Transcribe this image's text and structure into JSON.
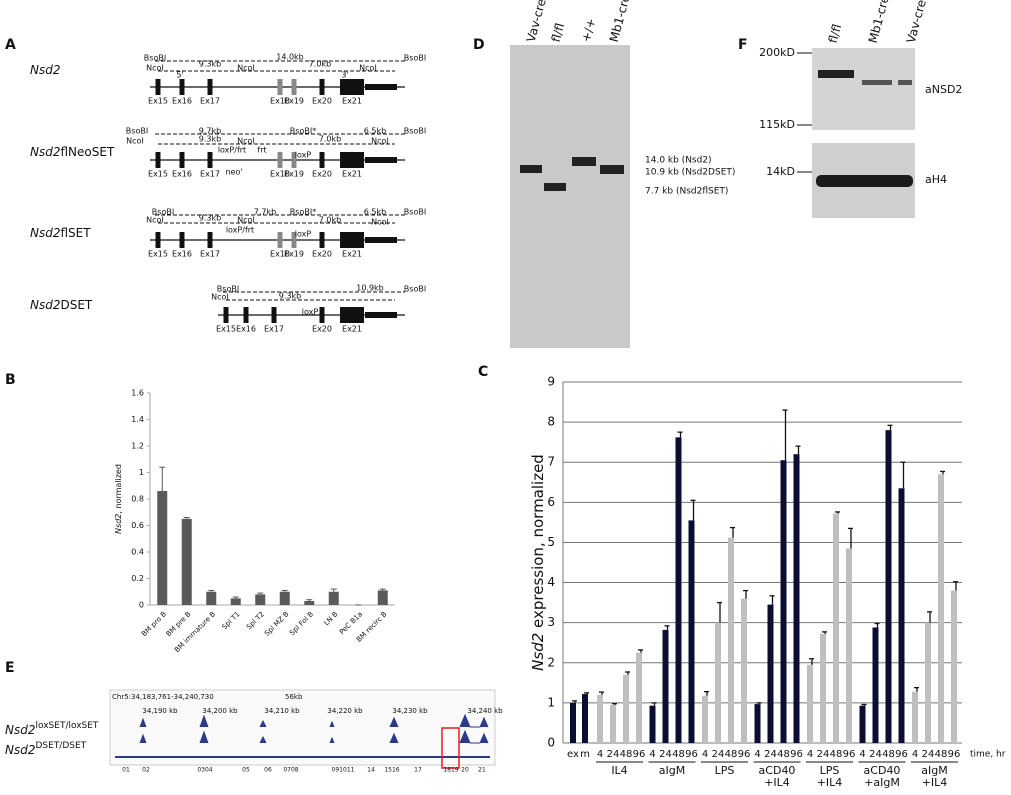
{
  "panel_labels": [
    "A",
    "B",
    "C",
    "D",
    "E",
    "F"
  ],
  "panel_a": {
    "constructs": [
      {
        "gene": "Nsd2",
        "labels": [
          "BsoBI",
          "NcoI",
          "5'",
          "14.0kb",
          "9.3kb",
          "NcoI",
          "7.0kb",
          "3'",
          "NcoI",
          "BsoBI"
        ],
        "exons": [
          "Ex15",
          "Ex16",
          "Ex17",
          "Ex18",
          "Ex19",
          "Ex20",
          "Ex21"
        ]
      },
      {
        "gene": "Nsd2",
        "allele": "flNeoSET",
        "labels": [
          "BsoBI",
          "NcoI",
          "9.7kb",
          "9.3kb",
          "NcoI",
          "BsoBI*",
          "7.0kb",
          "6.5kb",
          "BsoBI",
          "NcoI",
          "loxP/frt",
          "frt",
          "loxP",
          "neo'"
        ],
        "exons": [
          "Ex15",
          "Ex16",
          "Ex17",
          "Ex18",
          "Ex19",
          "Ex20",
          "Ex21"
        ]
      },
      {
        "gene": "Nsd2",
        "allele": "flSET",
        "labels": [
          "BsoBI",
          "NcoI",
          "7.7kb",
          "9.3kb",
          "NcoI",
          "BsoBI*",
          "7.0kb",
          "6.5kb",
          "BsoBI",
          "NcoI",
          "loxP/frt",
          "loxP"
        ],
        "exons": [
          "Ex15",
          "Ex16",
          "Ex17",
          "Ex18",
          "Ex19",
          "Ex20",
          "Ex21"
        ]
      },
      {
        "gene": "Nsd2",
        "allele": "DSET",
        "labels": [
          "BsoBI",
          "NcoI",
          "10.9kb",
          "9.3kb",
          "BsoBI",
          "loxP"
        ],
        "exons": [
          "Ex15",
          "Ex16",
          "Ex17",
          "Ex20",
          "Ex21"
        ]
      }
    ]
  },
  "chart_data": [
    {
      "type": "bar",
      "ylabel_gene": "Nsd2",
      "ylabel": ", normalized",
      "categories": [
        "BM pro B",
        "BM pre B",
        "BM immature B",
        "Spl T1",
        "Spl T2",
        "Spl MZ B",
        "Spl Fol B",
        "LN B",
        "PeC B1a",
        "BM recirc B"
      ],
      "values": [
        0.86,
        0.65,
        0.1,
        0.05,
        0.08,
        0.1,
        0.03,
        0.1,
        0,
        0.11
      ],
      "errors": [
        0.18,
        0.01,
        0.01,
        0.01,
        0.01,
        0.01,
        0.01,
        0.02,
        0,
        0.01
      ],
      "color": "#5a5a5a",
      "ylim": [
        0,
        1.6
      ],
      "yticks": [
        0,
        0.2,
        0.4,
        0.6,
        0.8,
        1,
        1.2,
        1.4,
        1.6
      ],
      "grid": false
    },
    {
      "type": "grouped-bar",
      "ylabel_gene": "Nsd2",
      "ylabel": " expression, normalized",
      "xlabel": "time, hr",
      "groups": [
        {
          "categories": [
            "ex",
            "m"
          ],
          "values": [
            1.0,
            1.22
          ],
          "errors": [
            0.05,
            0.03
          ],
          "color": "#0b0d33"
        },
        {
          "name": [
            "IL4"
          ],
          "categories": [
            "4",
            "24",
            "48",
            "96"
          ],
          "values": [
            1.2,
            0.95,
            1.7,
            2.25
          ],
          "errors": [
            0.07,
            0.03,
            0.07,
            0.07
          ],
          "color": "#bfbfbf"
        },
        {
          "name": [
            "aIgM"
          ],
          "categories": [
            "4",
            "24",
            "48",
            "96"
          ],
          "values": [
            0.93,
            2.82,
            7.62,
            5.55
          ],
          "errors": [
            0.07,
            0.1,
            0.13,
            0.5
          ],
          "color": "#0b0d33"
        },
        {
          "name": [
            "LPS"
          ],
          "categories": [
            "4",
            "24",
            "48",
            "96"
          ],
          "values": [
            1.18,
            3.0,
            5.12,
            3.6
          ],
          "errors": [
            0.1,
            0.5,
            0.25,
            0.2
          ],
          "color": "#bfbfbf"
        },
        {
          "name": [
            "aCD40",
            "+IL4"
          ],
          "categories": [
            "4",
            "24",
            "48",
            "96"
          ],
          "values": [
            0.97,
            3.45,
            7.05,
            7.2
          ],
          "errors": [
            0.03,
            0.22,
            1.25,
            0.2
          ],
          "color": "#0b0d33"
        },
        {
          "name": [
            "LPS",
            "+IL4"
          ],
          "categories": [
            "4",
            "24",
            "48",
            "96"
          ],
          "values": [
            1.95,
            2.72,
            5.72,
            4.85
          ],
          "errors": [
            0.15,
            0.05,
            0.04,
            0.5
          ],
          "color": "#bfbfbf"
        },
        {
          "name": [
            "aCD40",
            "+aIgM"
          ],
          "categories": [
            "4",
            "24",
            "48",
            "96"
          ],
          "values": [
            0.93,
            2.88,
            7.8,
            6.35
          ],
          "errors": [
            0.03,
            0.1,
            0.12,
            0.65
          ],
          "color": "#0b0d33"
        },
        {
          "name": [
            "aIgM",
            "+IL4"
          ],
          "categories": [
            "4",
            "24",
            "48",
            "96"
          ],
          "values": [
            1.28,
            3.0,
            6.7,
            3.8
          ],
          "errors": [
            0.1,
            0.27,
            0.07,
            0.22
          ],
          "color": "#bfbfbf"
        }
      ],
      "ylim": [
        0,
        9
      ],
      "yticks": [
        0,
        1,
        2,
        3,
        4,
        5,
        6,
        7,
        8,
        9
      ],
      "grid": true
    }
  ],
  "panel_d": {
    "lanes": [
      "Vav-cre",
      "fl/fl",
      "+/+",
      "Mb1-cre"
    ],
    "bands": [
      "14.0 kb (Nsd2)",
      "10.9 kb (Nsd2DSET)",
      "7.7 kb (Nsd2flSET)"
    ]
  },
  "panel_e": {
    "region": "Chr5:34,183,761-34,240,730",
    "span": "56kb",
    "ticks": [
      "34,190 kb",
      "34,200 kb",
      "34,210 kb",
      "34,220 kb",
      "34,230 kb",
      "34,240 kb"
    ],
    "tracks": [
      {
        "gene": "Nsd2",
        "genotype": "loxSET/loxSET"
      },
      {
        "gene": "Nsd2",
        "genotype": "DSET/DSET"
      }
    ],
    "exons": [
      "01",
      "02",
      "0304",
      "05",
      "06",
      "0708",
      "091011",
      "14",
      "1516",
      "17",
      "1819",
      "20",
      "21"
    ]
  },
  "panel_f": {
    "lanes": [
      "fl/fl",
      "Mb1-cre",
      "Vav-cre"
    ],
    "markers": [
      "200kD",
      "115kD",
      "14kD"
    ],
    "antibodies": [
      "aNSD2",
      "aH4"
    ]
  }
}
